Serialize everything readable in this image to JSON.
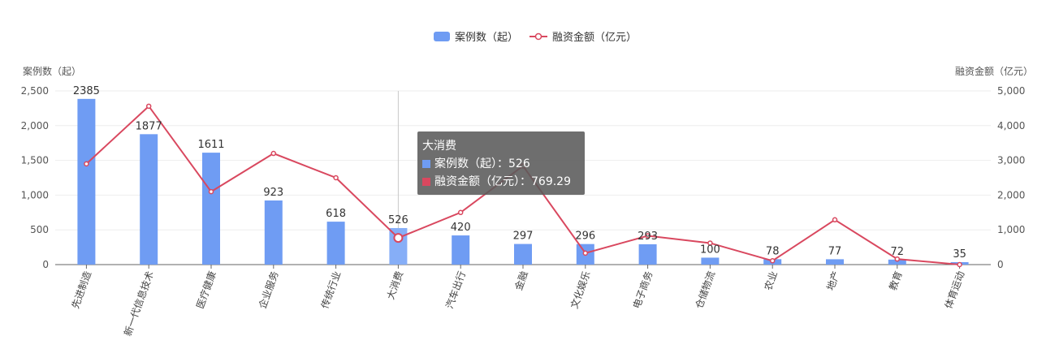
{
  "chart_data": {
    "type": "bar",
    "categories": [
      "先进制造",
      "新一代信息技术",
      "医疗健康",
      "企业服务",
      "传统行业",
      "大消费",
      "汽车出行",
      "金融",
      "文化娱乐",
      "电子商务",
      "仓储物流",
      "农业",
      "地产",
      "教育",
      "体育运动"
    ],
    "series": [
      {
        "name": "案例数（起）",
        "type": "bar",
        "axis": "left",
        "color": "#6f9cf3",
        "values": [
          2385,
          1877,
          1611,
          923,
          618,
          526,
          420,
          297,
          296,
          293,
          100,
          78,
          77,
          72,
          35
        ]
      },
      {
        "name": "融资金额（亿元）",
        "type": "line",
        "axis": "right",
        "color": "#d9485f",
        "values": [
          2900,
          4560,
          2100,
          3200,
          2500,
          769.29,
          1500,
          2840,
          330,
          830,
          620,
          110,
          1290,
          160,
          0
        ]
      }
    ],
    "ylabel_left": "案例数（起）",
    "ylabel_right": "融资金额（亿元）",
    "ylim_left": [
      0,
      2500
    ],
    "ylim_right": [
      0,
      5000
    ],
    "yticks_left": [
      "0",
      "500",
      "1,000",
      "1,500",
      "2,000",
      "2,500"
    ],
    "yticks_right": [
      "0",
      "1,000",
      "2,000",
      "3,000",
      "4,000",
      "5,000"
    ],
    "legend_position": "top-center",
    "grid": true,
    "highlight_index": 5
  },
  "tooltip": {
    "title": "大消费",
    "row1": "案例数（起）：526",
    "row2": "融资金额（亿元）：769.29",
    "color1": "#6f9cf3",
    "color2": "#d9485f"
  }
}
